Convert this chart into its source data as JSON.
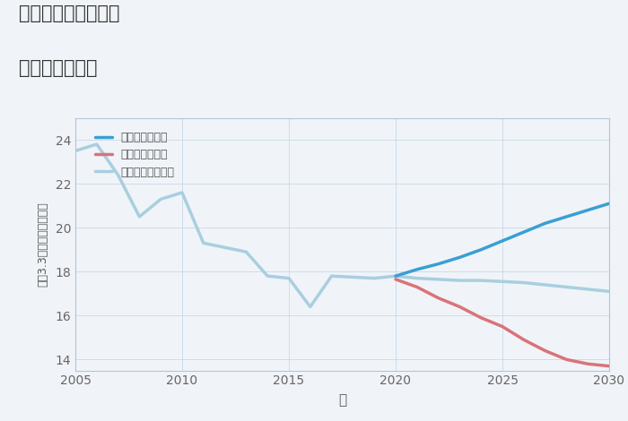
{
  "title_line1": "三重県桑名市福地の",
  "title_line2": "土地の価格推移",
  "xlabel": "年",
  "ylabel": "坪（3.3㎡）単価（万円）",
  "background_color": "#f0f4f8",
  "plot_bg_color": "#f0f4f8",
  "xlim": [
    2005,
    2030
  ],
  "ylim": [
    13.5,
    25
  ],
  "xticks": [
    2005,
    2010,
    2015,
    2020,
    2025,
    2030
  ],
  "yticks": [
    14,
    16,
    18,
    20,
    22,
    24
  ],
  "historical": {
    "color": "#a8cfe0",
    "linewidth": 2.5,
    "x": [
      2005,
      2006,
      2007,
      2008,
      2009,
      2010,
      2011,
      2012,
      2013,
      2014,
      2015,
      2016,
      2017,
      2018,
      2019,
      2020
    ],
    "y": [
      23.5,
      23.8,
      22.4,
      20.5,
      21.3,
      21.6,
      19.3,
      19.1,
      18.9,
      17.8,
      17.7,
      16.4,
      17.8,
      17.75,
      17.7,
      17.8
    ]
  },
  "good_scenario": {
    "label": "グッドシナリオ",
    "color": "#3a9fd4",
    "linewidth": 2.5,
    "x": [
      2020,
      2021,
      2022,
      2023,
      2024,
      2025,
      2026,
      2027,
      2028,
      2029,
      2030
    ],
    "y": [
      17.8,
      18.1,
      18.35,
      18.65,
      19.0,
      19.4,
      19.8,
      20.2,
      20.5,
      20.8,
      21.1
    ]
  },
  "bad_scenario": {
    "label": "バッドシナリオ",
    "color": "#d9737a",
    "linewidth": 2.5,
    "x": [
      2020,
      2021,
      2022,
      2023,
      2024,
      2025,
      2026,
      2027,
      2028,
      2029,
      2030
    ],
    "y": [
      17.65,
      17.3,
      16.8,
      16.4,
      15.9,
      15.5,
      14.9,
      14.4,
      14.0,
      13.8,
      13.7
    ]
  },
  "normal_scenario": {
    "label": "ノーマルシナリオ",
    "color": "#a8cfe0",
    "linewidth": 2.5,
    "x": [
      2020,
      2021,
      2022,
      2023,
      2024,
      2025,
      2026,
      2027,
      2028,
      2029,
      2030
    ],
    "y": [
      17.8,
      17.7,
      17.65,
      17.6,
      17.6,
      17.55,
      17.5,
      17.4,
      17.3,
      17.2,
      17.1
    ]
  }
}
